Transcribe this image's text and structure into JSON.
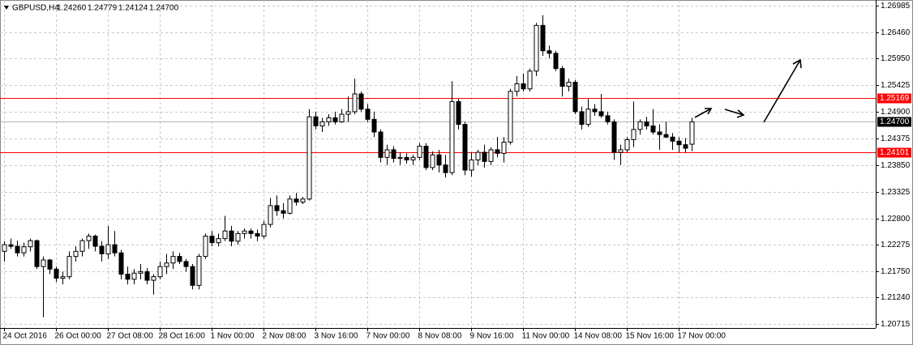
{
  "chart_data": {
    "type": "candlestick",
    "title": "GBPUSD,H4",
    "quote": [
      {
        "value": 1.2426,
        "label": "1.24260"
      },
      1.24779,
      1.24124,
      {
        "value": 1.247,
        "label": "1.24700"
      }
    ],
    "categories": [
      "24 Oct 2016",
      null,
      null,
      null,
      null,
      null,
      null,
      null,
      "26 Oct 00:00",
      null,
      null,
      null,
      null,
      null,
      null,
      null,
      "27 Oct 08:00",
      null,
      null,
      null,
      null,
      null,
      null,
      null,
      "28 Oct 16:00",
      null,
      null,
      null,
      null,
      null,
      null,
      null,
      "1 Nov 00:00",
      null,
      null,
      null,
      null,
      null,
      null,
      null,
      "2 Nov 08:00",
      null,
      null,
      null,
      null,
      null,
      null,
      null,
      "3 Nov 16:00",
      null,
      null,
      null,
      null,
      null,
      null,
      null,
      "7 Nov 00:00",
      null,
      null,
      null,
      null,
      null,
      null,
      null,
      "8 Nov 08:00",
      null,
      null,
      null,
      null,
      null,
      null,
      null,
      "9 Nov 16:00",
      null,
      null,
      null,
      null,
      null,
      null,
      null,
      "11 Nov 00:00",
      null,
      null,
      null,
      null,
      null,
      null,
      null,
      "14 Nov 08:00",
      null,
      null,
      null,
      null,
      null,
      null,
      null,
      "15 Nov 16:00",
      null,
      null,
      null,
      null,
      null,
      null,
      null,
      "17 Nov 00:00",
      null,
      null
    ],
    "open": [
      1.2215,
      1.2228,
      1.2225,
      1.2212,
      1.2224,
      1.2236,
      1.2185,
      1.2198,
      1.218,
      1.2162,
      1.2165,
      1.2205,
      1.2215,
      1.2236,
      1.2245,
      1.2225,
      1.221,
      1.2228,
      1.2212,
      1.217,
      1.216,
      1.2172,
      1.2175,
      1.2158,
      1.2165,
      1.2185,
      1.2192,
      1.2205,
      1.2195,
      1.2185,
      1.2148,
      1.2205,
      1.2245,
      1.2232,
      1.224,
      1.2255,
      1.2235,
      1.225,
      1.2255,
      1.225,
      1.2245,
      1.2268,
      1.2305,
      1.2295,
      1.229,
      1.2318,
      1.2312,
      1.2318,
      1.248,
      1.2462,
      1.247,
      1.2478,
      1.247,
      1.2485,
      1.249,
      1.2525,
      1.2495,
      1.2475,
      1.245,
      1.24,
      1.2415,
      1.2398,
      1.24,
      1.2395,
      1.24,
      1.2422,
      1.238,
      1.2405,
      1.2385,
      1.237,
      1.251,
      1.2465,
      1.2375,
      1.2395,
      1.241,
      1.2392,
      1.2415,
      1.2408,
      1.243,
      1.253,
      1.2545,
      1.2535,
      1.257,
      1.266,
      1.261,
      1.2605,
      1.2575,
      1.254,
      1.2548,
      1.249,
      1.2465,
      1.2495,
      1.249,
      1.2482,
      1.247,
      1.241,
      1.2415,
      1.2435,
      1.2455,
      1.247,
      1.2462,
      1.245,
      1.2445,
      1.244,
      1.2432,
      1.2425,
      1.2426
    ],
    "high": [
      1.2235,
      1.224,
      1.2236,
      1.2232,
      1.224,
      1.2238,
      1.2205,
      1.22,
      1.2185,
      1.2175,
      1.2215,
      1.2225,
      1.224,
      1.225,
      1.2248,
      1.2235,
      1.2265,
      1.2255,
      1.2218,
      1.2185,
      1.218,
      1.219,
      1.2182,
      1.217,
      1.2195,
      1.221,
      1.2215,
      1.2212,
      1.22,
      1.219,
      1.221,
      1.225,
      1.2255,
      1.225,
      1.2285,
      1.2265,
      1.2255,
      1.226,
      1.226,
      1.2258,
      1.2275,
      1.232,
      1.2325,
      1.231,
      1.2325,
      1.233,
      1.2322,
      1.2495,
      1.249,
      1.2478,
      1.2485,
      1.249,
      1.2495,
      1.252,
      1.2555,
      1.253,
      1.2505,
      1.249,
      1.2455,
      1.2425,
      1.2422,
      1.241,
      1.2408,
      1.2405,
      1.2428,
      1.2428,
      1.2412,
      1.2415,
      1.2405,
      1.255,
      1.2515,
      1.247,
      1.241,
      1.2415,
      1.2425,
      1.242,
      1.244,
      1.244,
      1.2535,
      1.256,
      1.2565,
      1.2575,
      1.2665,
      1.268,
      1.262,
      1.261,
      1.258,
      1.2555,
      1.2552,
      1.25,
      1.2515,
      1.2505,
      1.2525,
      1.249,
      1.2475,
      1.2425,
      1.244,
      1.251,
      1.2475,
      1.248,
      1.2495,
      1.2465,
      1.247,
      1.2448,
      1.244,
      1.2438,
      1.24779
    ],
    "low": [
      1.2195,
      1.222,
      1.2205,
      1.2205,
      1.2215,
      1.218,
      1.2085,
      1.217,
      1.2155,
      1.215,
      1.216,
      1.2195,
      1.2205,
      1.222,
      1.2215,
      1.2195,
      1.22,
      1.2205,
      1.216,
      1.215,
      1.215,
      1.216,
      1.215,
      1.213,
      1.216,
      1.217,
      1.218,
      1.219,
      1.2175,
      1.214,
      1.214,
      1.22,
      1.2225,
      1.2225,
      1.2235,
      1.2225,
      1.2228,
      1.224,
      1.224,
      1.2235,
      1.224,
      1.2262,
      1.2285,
      1.228,
      1.2288,
      1.2305,
      1.2308,
      1.2315,
      1.2455,
      1.245,
      1.2462,
      1.2465,
      1.2468,
      1.247,
      1.2485,
      1.249,
      1.247,
      1.244,
      1.239,
      1.2385,
      1.239,
      1.2385,
      1.2388,
      1.2385,
      1.2395,
      1.2375,
      1.2375,
      1.237,
      1.236,
      1.2365,
      1.2455,
      1.2365,
      1.2362,
      1.2385,
      1.238,
      1.2385,
      1.24,
      1.239,
      1.2425,
      1.252,
      1.253,
      1.253,
      1.256,
      1.26,
      1.2595,
      1.257,
      1.252,
      1.253,
      1.2485,
      1.2455,
      1.246,
      1.2482,
      1.2478,
      1.2465,
      1.2395,
      1.2385,
      1.241,
      1.242,
      1.2445,
      1.2455,
      1.2445,
      1.2415,
      1.2438,
      1.2415,
      1.241,
      1.241,
      1.24124
    ],
    "close": [
      1.2228,
      1.2225,
      1.2212,
      1.2224,
      1.2236,
      1.2185,
      1.2198,
      1.218,
      1.2162,
      1.2165,
      1.2205,
      1.2215,
      1.2236,
      1.2245,
      1.2225,
      1.221,
      1.2228,
      1.2212,
      1.217,
      1.216,
      1.2172,
      1.2175,
      1.2158,
      1.2165,
      1.2185,
      1.2192,
      1.2205,
      1.2195,
      1.2185,
      1.2148,
      1.2205,
      1.2245,
      1.2232,
      1.224,
      1.2255,
      1.2235,
      1.225,
      1.2255,
      1.225,
      1.2245,
      1.2268,
      1.2305,
      1.2295,
      1.229,
      1.2318,
      1.2312,
      1.2318,
      1.248,
      1.2462,
      1.247,
      1.2478,
      1.247,
      1.2485,
      1.249,
      1.2525,
      1.2495,
      1.2475,
      1.245,
      1.24,
      1.2415,
      1.2398,
      1.24,
      1.2395,
      1.24,
      1.2422,
      1.238,
      1.2405,
      1.2385,
      1.237,
      1.251,
      1.2465,
      1.2375,
      1.2395,
      1.241,
      1.2392,
      1.2415,
      1.2408,
      1.243,
      1.253,
      1.2545,
      1.2535,
      1.257,
      1.266,
      1.261,
      1.2605,
      1.2575,
      1.254,
      1.2548,
      1.249,
      1.2465,
      1.2495,
      1.249,
      1.2482,
      1.247,
      1.241,
      1.2415,
      1.2435,
      1.2455,
      1.247,
      1.2462,
      1.245,
      1.2445,
      1.244,
      1.2432,
      1.2425,
      1.2418,
      1.247
    ],
    "ylim": [
      1.2064,
      1.271
    ],
    "yticks": [
      1.26985,
      {
        "value": 1.2646,
        "label": "1.26460"
      },
      {
        "value": 1.2595,
        "label": "1.25950"
      },
      1.25425,
      {
        "value": 1.249,
        "label": "1.24900"
      },
      1.24375,
      {
        "value": 1.2385,
        "label": "1.23850"
      },
      1.23325,
      {
        "value": 1.228,
        "label": "1.22800"
      },
      1.22275,
      {
        "value": 1.2175,
        "label": "1.21750"
      },
      {
        "value": 1.2124,
        "label": "1.21240"
      },
      1.20715
    ],
    "levels": [
      {
        "value": 1.25169,
        "color": "#ff0000"
      },
      {
        "value": 1.24101,
        "color": "#ff0000"
      }
    ],
    "current": {
      "value": 1.247,
      "label": "1.24700"
    },
    "grid": true,
    "up_color": "#ffffff",
    "down_color": "#000000"
  }
}
